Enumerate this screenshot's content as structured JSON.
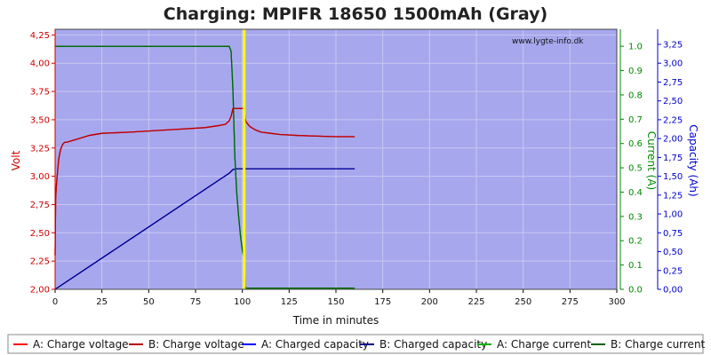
{
  "chart_data": {
    "type": "line",
    "title": "Charging: MPIFR 18650 1500mAh (Gray)",
    "watermark": "www.lygte-info.dk",
    "xlabel": "Time in minutes",
    "ylabel_left": "Volt",
    "ylabel_right1": "Current (A)",
    "ylabel_right2": "Capacity (Ah)",
    "xlim": [
      0,
      300
    ],
    "ylim_volt": [
      2.0,
      4.3
    ],
    "ylim_current": [
      0,
      1.07
    ],
    "ylim_capacity": [
      0,
      3.45
    ],
    "x_ticks": [
      "0",
      "25",
      "50",
      "75",
      "100",
      "125",
      "150",
      "175",
      "200",
      "225",
      "250",
      "275",
      "300"
    ],
    "volt_ticks": [
      "2,00",
      "2,25",
      "2,50",
      "2,75",
      "3,00",
      "3,25",
      "3,50",
      "3,75",
      "4,00",
      "4,25"
    ],
    "current_ticks": [
      "0.0",
      "0.1",
      "0.2",
      "0.3",
      "0.4",
      "0.5",
      "0.6",
      "0.7",
      "0.8",
      "0.9",
      "1.0"
    ],
    "capacity_ticks": [
      "0,00",
      "0,25",
      "0,50",
      "0,75",
      "1,00",
      "1,25",
      "1,50",
      "1,75",
      "2,00",
      "2,25",
      "2,50",
      "2,75",
      "3,00",
      "3,25"
    ],
    "grid": true,
    "marker_x": 101,
    "colors": {
      "plot_bg": "#a7a7ee",
      "grid": "#c8c8f0",
      "voltage_a": "#ff0000",
      "voltage_b": "#b80000",
      "capacity_a": "#0000ff",
      "capacity_b": "#00008b",
      "current_a": "#00b000",
      "current_b": "#006400",
      "marker": "#ffff00",
      "volt_axis": "#cc0000",
      "current_axis": "#008800",
      "capacity_axis": "#0000cc"
    },
    "series": [
      {
        "name": "A: Charge voltage",
        "axis": "volt",
        "color_key": "voltage_a",
        "x": [
          0,
          0.3,
          0.6,
          1,
          1.5,
          2,
          3,
          4,
          5,
          6,
          8,
          12,
          18,
          25,
          40,
          60,
          80,
          88,
          91,
          93,
          94,
          95,
          96,
          100,
          101,
          101.5,
          102,
          104,
          107,
          110,
          115,
          120,
          130,
          140,
          150,
          160
        ],
        "y": [
          2.3,
          2.8,
          2.9,
          2.98,
          3.08,
          3.16,
          3.24,
          3.28,
          3.3,
          3.3,
          3.31,
          3.33,
          3.36,
          3.38,
          3.39,
          3.41,
          3.43,
          3.45,
          3.46,
          3.49,
          3.53,
          3.6,
          3.6,
          3.6,
          3.6,
          3.51,
          3.48,
          3.44,
          3.41,
          3.39,
          3.38,
          3.37,
          3.36,
          3.355,
          3.35,
          3.35
        ]
      },
      {
        "name": "B: Charge voltage",
        "axis": "volt",
        "color_key": "voltage_b",
        "x": [
          0,
          0.3,
          0.6,
          1,
          1.5,
          2,
          3,
          4,
          5,
          6,
          8,
          12,
          18,
          25,
          40,
          60,
          80,
          88,
          91,
          93,
          94,
          95,
          96,
          100,
          101,
          101.5,
          102,
          104,
          107,
          110,
          115,
          120,
          130,
          140,
          150,
          160
        ],
        "y": [
          2.3,
          2.8,
          2.9,
          2.98,
          3.08,
          3.16,
          3.24,
          3.28,
          3.3,
          3.3,
          3.31,
          3.33,
          3.36,
          3.38,
          3.39,
          3.41,
          3.43,
          3.45,
          3.46,
          3.49,
          3.53,
          3.6,
          3.6,
          3.6,
          3.6,
          3.51,
          3.48,
          3.44,
          3.41,
          3.39,
          3.38,
          3.37,
          3.36,
          3.355,
          3.35,
          3.35
        ]
      },
      {
        "name": "A: Charged capacity",
        "axis": "capacity",
        "color_key": "capacity_a",
        "x": [
          0,
          93,
          95,
          97,
          100,
          160
        ],
        "y": [
          0,
          1.54,
          1.59,
          1.6,
          1.6,
          1.6
        ]
      },
      {
        "name": "B: Charged capacity",
        "axis": "capacity",
        "color_key": "capacity_b",
        "x": [
          0,
          93,
          95,
          97,
          100,
          160
        ],
        "y": [
          0,
          1.54,
          1.59,
          1.6,
          1.6,
          1.6
        ]
      },
      {
        "name": "A: Charge current",
        "axis": "current",
        "color_key": "current_a",
        "x": [
          0,
          93,
          94,
          95,
          96,
          97,
          98,
          99,
          100,
          101,
          101.5,
          102,
          160
        ],
        "y": [
          1.0,
          1.0,
          0.98,
          0.82,
          0.55,
          0.4,
          0.3,
          0.22,
          0.16,
          0.12,
          0.01,
          0.005,
          0.005
        ]
      },
      {
        "name": "B: Charge current",
        "axis": "current",
        "color_key": "current_b",
        "x": [
          0,
          93,
          94,
          95,
          96,
          97,
          98,
          99,
          100,
          101,
          101.5,
          102,
          160
        ],
        "y": [
          1.0,
          1.0,
          0.98,
          0.82,
          0.55,
          0.4,
          0.3,
          0.22,
          0.16,
          0.12,
          0.01,
          0.005,
          0.005
        ]
      }
    ],
    "legend": [
      {
        "label": "A: Charge voltage",
        "color_key": "voltage_a"
      },
      {
        "label": "B: Charge voltage",
        "color_key": "voltage_b"
      },
      {
        "label": "A: Charged capacity",
        "color_key": "capacity_a"
      },
      {
        "label": "B: Charged capacity",
        "color_key": "capacity_b"
      },
      {
        "label": "A: Charge current",
        "color_key": "current_a"
      },
      {
        "label": "B: Charge current",
        "color_key": "current_b"
      }
    ],
    "legend_position": "bottom"
  }
}
